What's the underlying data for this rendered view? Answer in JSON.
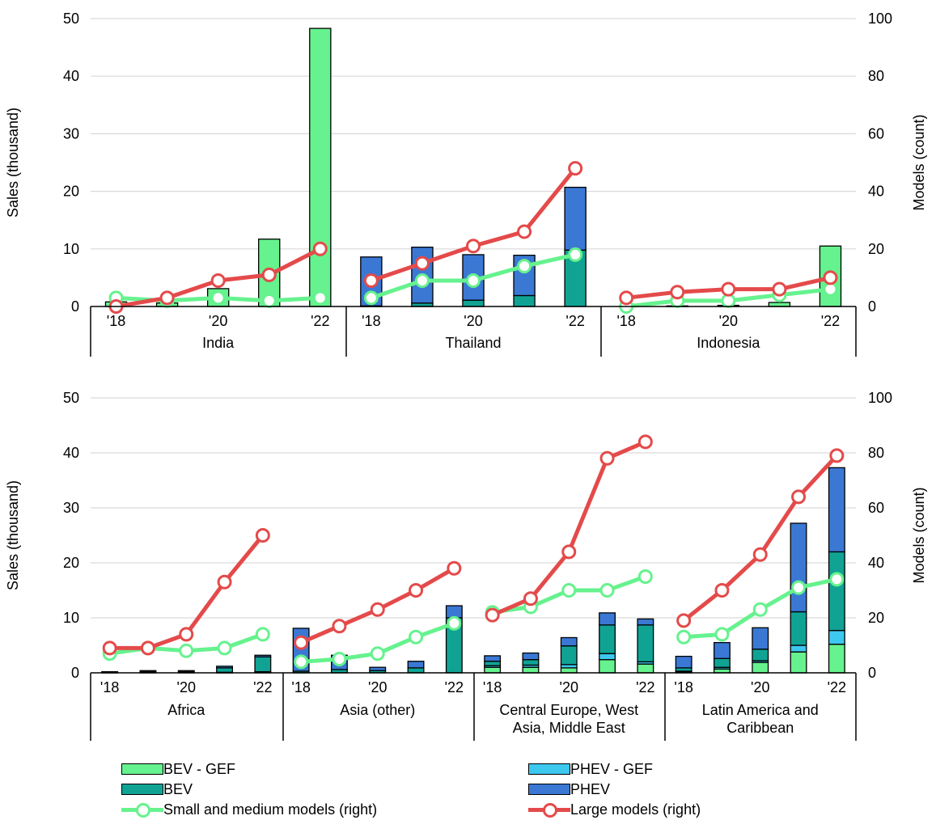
{
  "colors": {
    "bev_gef": "#66f28e",
    "bev": "#10a394",
    "phev_gef": "#3dc8f0",
    "phev": "#3a78d4",
    "small_medium": "#66f28e",
    "large": "#e44a4a"
  },
  "legend": {
    "bev_gef": "BEV - GEF",
    "phev_gef": "PHEV - GEF",
    "bev": "BEV",
    "phev": "PHEV",
    "small_medium": "Small and medium models (right)",
    "large": "Large models (right)"
  },
  "chart_data": [
    {
      "type": "bar",
      "stacked": true,
      "ylabel": "Sales (thousand)",
      "y2label": "Models (count)",
      "ylim": [
        0,
        50
      ],
      "y2lim": [
        0,
        100
      ],
      "yticks": [
        "0",
        "10",
        "20",
        "30",
        "40",
        "50"
      ],
      "y2ticks": [
        "0",
        "20",
        "40",
        "60",
        "80",
        "100"
      ],
      "years": [
        2018,
        2019,
        2020,
        2021,
        2022
      ],
      "xticks": [
        "'18",
        "'20",
        "'22"
      ],
      "grid": true,
      "groups": [
        {
          "name": "India",
          "series": {
            "bev_gef": [
              0.8,
              0.6,
              3.1,
              11.7,
              48.3
            ],
            "bev": [
              0,
              0,
              0,
              0,
              0
            ],
            "phev_gef": [
              0,
              0,
              0,
              0,
              0
            ],
            "phev": [
              0,
              0,
              0,
              0,
              0
            ]
          },
          "small_medium": [
            3,
            2,
            3,
            2,
            3
          ],
          "large": [
            0,
            3,
            9,
            11,
            20
          ]
        },
        {
          "name": "Thailand",
          "series": {
            "bev_gef": [
              0,
              0,
              0,
              0,
              0
            ],
            "bev": [
              0.1,
              0.6,
              1.1,
              1.9,
              9.8
            ],
            "phev_gef": [
              0,
              0,
              0,
              0,
              0
            ],
            "phev": [
              8.5,
              9.7,
              7.9,
              7.0,
              10.9
            ]
          },
          "small_medium": [
            3,
            9,
            9,
            14,
            18
          ],
          "large": [
            9,
            15,
            21,
            26,
            48
          ]
        },
        {
          "name": "Indonesia",
          "series": {
            "bev_gef": [
              0,
              0.1,
              0.2,
              0.7,
              10.5
            ],
            "bev": [
              0,
              0,
              0,
              0,
              0
            ],
            "phev_gef": [
              0,
              0,
              0,
              0,
              0
            ],
            "phev": [
              0,
              0,
              0,
              0,
              0
            ]
          },
          "small_medium": [
            0,
            2,
            2,
            4,
            6
          ],
          "large": [
            3,
            5,
            6,
            6,
            10
          ]
        }
      ]
    },
    {
      "type": "bar",
      "stacked": true,
      "ylabel": "Sales (thousand)",
      "y2label": "Models (count)",
      "ylim": [
        0,
        50
      ],
      "y2lim": [
        0,
        100
      ],
      "yticks": [
        "0",
        "10",
        "20",
        "30",
        "40",
        "50"
      ],
      "y2ticks": [
        "0",
        "20",
        "40",
        "60",
        "80",
        "100"
      ],
      "years": [
        2018,
        2019,
        2020,
        2021,
        2022
      ],
      "xticks": [
        "'18",
        "'20",
        "'22"
      ],
      "grid": true,
      "groups": [
        {
          "name": "Africa",
          "series": {
            "bev_gef": [
              0,
              0,
              0,
              0.1,
              0.2
            ],
            "bev": [
              0.1,
              0.2,
              0.2,
              0.8,
              2.7
            ],
            "phev_gef": [
              0,
              0,
              0,
              0,
              0
            ],
            "phev": [
              0.1,
              0.2,
              0.2,
              0.3,
              0.3
            ]
          },
          "small_medium": [
            7,
            9,
            8,
            9,
            14
          ],
          "large": [
            9,
            9,
            14,
            33,
            50
          ]
        },
        {
          "name": "Asia (other)",
          "series": {
            "bev_gef": [
              0,
              0,
              0,
              0,
              0
            ],
            "bev": [
              0.3,
              0.6,
              0.4,
              0.9,
              10.0
            ],
            "phev_gef": [
              0,
              0,
              0,
              0,
              0
            ],
            "phev": [
              7.8,
              2.6,
              0.6,
              1.2,
              2.2
            ]
          },
          "small_medium": [
            4,
            5,
            7,
            13,
            18
          ],
          "large": [
            11,
            17,
            23,
            30,
            38
          ]
        },
        {
          "name": "Central Europe, West Asia, Middle East",
          "series": {
            "bev_gef": [
              1.0,
              1.0,
              0.9,
              2.4,
              1.6
            ],
            "bev": [
              0.8,
              1.0,
              3.4,
              5.2,
              6.7
            ],
            "phev_gef": [
              0.3,
              0.4,
              0.6,
              1.1,
              0.4
            ],
            "phev": [
              1.0,
              1.2,
              1.5,
              2.2,
              1.1
            ]
          },
          "small_medium": [
            22,
            24,
            30,
            30,
            35
          ],
          "large": [
            21,
            27,
            44,
            78,
            84
          ]
        },
        {
          "name": "Latin America and Caribbean",
          "series": {
            "bev_gef": [
              0.2,
              0.7,
              1.9,
              3.8,
              5.2
            ],
            "bev": [
              0.6,
              1.6,
              2.1,
              6.1,
              14.3
            ],
            "phev_gef": [
              0.1,
              0.3,
              0.3,
              1.2,
              2.5
            ],
            "phev": [
              2.1,
              2.9,
              3.9,
              16.1,
              15.3
            ]
          },
          "small_medium": [
            13,
            14,
            23,
            31,
            34
          ],
          "large": [
            19,
            30,
            43,
            64,
            79
          ]
        }
      ]
    }
  ]
}
